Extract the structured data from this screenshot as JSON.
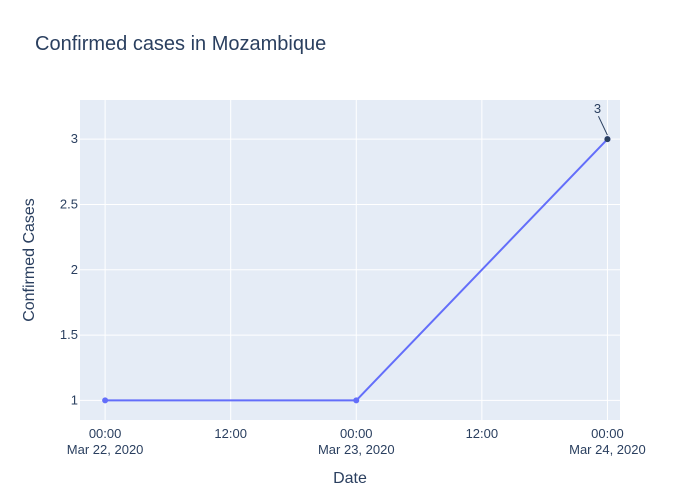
{
  "chart_data": {
    "type": "line",
    "title": "Confirmed cases in Mozambique",
    "xlabel": "Date",
    "ylabel": "Confirmed Cases",
    "x_axis_type": "date",
    "xlim": [
      "2020-03-21T21:36:00",
      "2020-03-24T01:12:00"
    ],
    "ylim": [
      0.85,
      3.3
    ],
    "x_ticks": [
      {
        "value": "2020-03-22T00:00:00",
        "line1": "00:00",
        "line2": "Mar 22, 2020"
      },
      {
        "value": "2020-03-22T12:00:00",
        "line1": "12:00",
        "line2": ""
      },
      {
        "value": "2020-03-23T00:00:00",
        "line1": "00:00",
        "line2": "Mar 23, 2020"
      },
      {
        "value": "2020-03-23T12:00:00",
        "line1": "12:00",
        "line2": ""
      },
      {
        "value": "2020-03-24T00:00:00",
        "line1": "00:00",
        "line2": "Mar 24, 2020"
      }
    ],
    "y_ticks": [
      {
        "value": 1,
        "label": "1"
      },
      {
        "value": 1.5,
        "label": "1.5"
      },
      {
        "value": 2,
        "label": "2"
      },
      {
        "value": 2.5,
        "label": "2.5"
      },
      {
        "value": 3,
        "label": "3"
      }
    ],
    "series": [
      {
        "x": [
          "2020-03-22T00:00:00",
          "2020-03-23T00:00:00",
          "2020-03-24T00:00:00"
        ],
        "y": [
          1,
          1,
          3
        ]
      }
    ],
    "annotations": [
      {
        "x": "2020-03-24T00:00:00",
        "y": 3,
        "text": "3"
      }
    ],
    "grid": true,
    "colors": {
      "line": "#636efa",
      "plot_bg": "#e5ecf6",
      "grid": "#ffffff",
      "text": "#2a3f5f",
      "annotation_marker": "#2a3f5f",
      "annotation_arrow": "#2a3f5f"
    }
  }
}
